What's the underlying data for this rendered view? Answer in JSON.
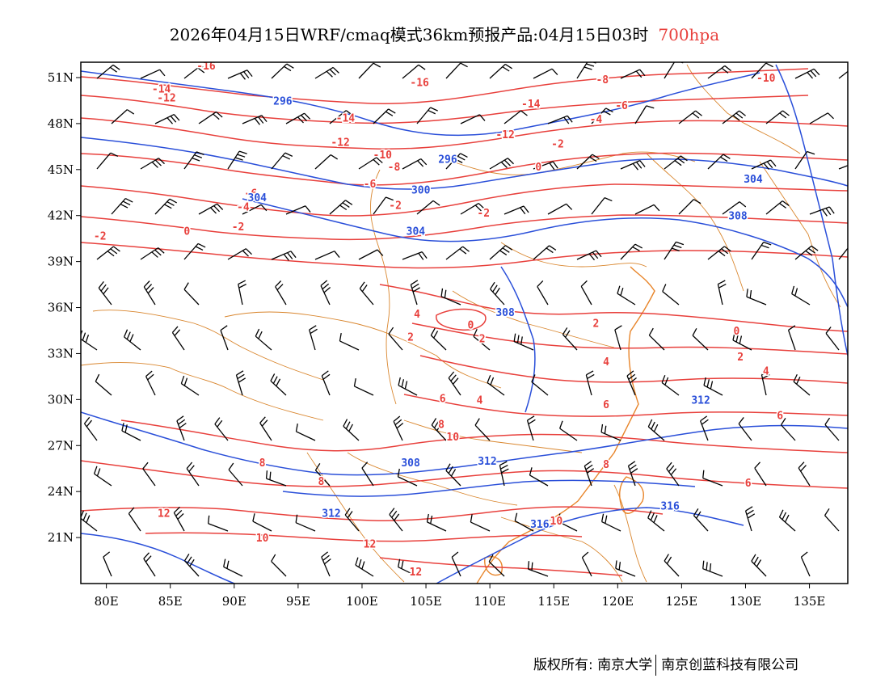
{
  "title": {
    "main": "2026年04月15日WRF/cmaq模式36km预报产品:04月15日03时",
    "level": "700hpa",
    "level_color": "#e8403c"
  },
  "map": {
    "lon_range": [
      78,
      138
    ],
    "lat_range": [
      18,
      52
    ],
    "lon_ticks": [
      "80E",
      "85E",
      "90E",
      "95E",
      "100E",
      "105E",
      "110E",
      "115E",
      "120E",
      "125E",
      "130E",
      "135E"
    ],
    "lat_ticks": [
      "51N",
      "48N",
      "45N",
      "42N",
      "39N",
      "36N",
      "33N",
      "30N",
      "27N",
      "24N",
      "21N"
    ],
    "colors": {
      "temperature": "#e8403c",
      "height": "#2a4fd9",
      "border": "#d9862e",
      "wind": "#000000"
    },
    "temperature_labels": [
      {
        "text": "-16",
        "lon": 87.8,
        "lat": 51.8
      },
      {
        "text": "-14",
        "lon": 84.3,
        "lat": 50.3
      },
      {
        "text": "-12",
        "lon": 84.7,
        "lat": 49.7
      },
      {
        "text": "-16",
        "lon": 104.5,
        "lat": 50.7
      },
      {
        "text": "-14",
        "lon": 98.7,
        "lat": 48.4
      },
      {
        "text": "-12",
        "lon": 98.3,
        "lat": 46.8
      },
      {
        "text": "-14",
        "lon": 113.2,
        "lat": 49.3
      },
      {
        "text": "-12",
        "lon": 111.2,
        "lat": 47.3
      },
      {
        "text": "-10",
        "lon": 101.6,
        "lat": 46.0
      },
      {
        "text": "-8",
        "lon": 102.5,
        "lat": 45.2
      },
      {
        "text": "-8",
        "lon": 118.8,
        "lat": 50.9
      },
      {
        "text": "-6",
        "lon": 120.3,
        "lat": 49.2
      },
      {
        "text": "-4",
        "lon": 118.3,
        "lat": 48.3
      },
      {
        "text": "-2",
        "lon": 115.3,
        "lat": 46.7
      },
      {
        "text": "0",
        "lon": 113.8,
        "lat": 45.2
      },
      {
        "text": "-10",
        "lon": 131.6,
        "lat": 51.0
      },
      {
        "text": "-6",
        "lon": 100.6,
        "lat": 44.1
      },
      {
        "text": "-2",
        "lon": 102.6,
        "lat": 42.7
      },
      {
        "text": "-6",
        "lon": 91.3,
        "lat": 43.5
      },
      {
        "text": "-4",
        "lon": 90.7,
        "lat": 42.6
      },
      {
        "text": "-2",
        "lon": 90.3,
        "lat": 41.3
      },
      {
        "text": "0",
        "lon": 86.3,
        "lat": 41.0
      },
      {
        "text": "-2",
        "lon": 79.5,
        "lat": 40.7
      },
      {
        "text": "-2",
        "lon": 109.5,
        "lat": 42.2
      },
      {
        "text": "4",
        "lon": 104.3,
        "lat": 35.6
      },
      {
        "text": "2",
        "lon": 103.8,
        "lat": 34.1
      },
      {
        "text": "0",
        "lon": 108.5,
        "lat": 34.9
      },
      {
        "text": "2",
        "lon": 109.4,
        "lat": 34.0
      },
      {
        "text": "2",
        "lon": 118.3,
        "lat": 35.0
      },
      {
        "text": "0",
        "lon": 129.3,
        "lat": 34.5
      },
      {
        "text": "2",
        "lon": 129.6,
        "lat": 32.8
      },
      {
        "text": "4",
        "lon": 119.1,
        "lat": 32.5
      },
      {
        "text": "4",
        "lon": 131.6,
        "lat": 31.9
      },
      {
        "text": "6",
        "lon": 106.3,
        "lat": 30.1
      },
      {
        "text": "4",
        "lon": 109.2,
        "lat": 30.0
      },
      {
        "text": "6",
        "lon": 119.1,
        "lat": 29.7
      },
      {
        "text": "6",
        "lon": 132.7,
        "lat": 29.0
      },
      {
        "text": "8",
        "lon": 106.2,
        "lat": 28.4
      },
      {
        "text": "10",
        "lon": 107.1,
        "lat": 27.6
      },
      {
        "text": "8",
        "lon": 92.2,
        "lat": 25.9
      },
      {
        "text": "8",
        "lon": 96.8,
        "lat": 24.7
      },
      {
        "text": "8",
        "lon": 119.1,
        "lat": 25.8
      },
      {
        "text": "6",
        "lon": 130.2,
        "lat": 24.6
      },
      {
        "text": "12",
        "lon": 84.5,
        "lat": 22.6
      },
      {
        "text": "10",
        "lon": 92.2,
        "lat": 21.0
      },
      {
        "text": "12",
        "lon": 100.6,
        "lat": 20.6
      },
      {
        "text": "10",
        "lon": 115.2,
        "lat": 22.1
      },
      {
        "text": "12",
        "lon": 104.2,
        "lat": 18.8
      }
    ],
    "height_labels": [
      {
        "text": "296",
        "lon": 93.8,
        "lat": 49.5
      },
      {
        "text": "296",
        "lon": 106.7,
        "lat": 45.7
      },
      {
        "text": "300",
        "lon": 104.6,
        "lat": 43.7
      },
      {
        "text": "304",
        "lon": 91.8,
        "lat": 43.2
      },
      {
        "text": "304",
        "lon": 104.2,
        "lat": 41.0
      },
      {
        "text": "304",
        "lon": 130.6,
        "lat": 44.4
      },
      {
        "text": "308",
        "lon": 129.4,
        "lat": 42.0
      },
      {
        "text": "308",
        "lon": 111.2,
        "lat": 35.7
      },
      {
        "text": "308",
        "lon": 103.8,
        "lat": 25.9
      },
      {
        "text": "312",
        "lon": 109.8,
        "lat": 26.0
      },
      {
        "text": "312",
        "lon": 126.5,
        "lat": 30.0
      },
      {
        "text": "312",
        "lon": 97.6,
        "lat": 22.6
      },
      {
        "text": "316",
        "lon": 113.9,
        "lat": 21.9
      },
      {
        "text": "316",
        "lon": 124.1,
        "lat": 23.1
      }
    ]
  },
  "footer": {
    "left": "版权所有: 南京大学",
    "right": "南京创蓝科技有限公司"
  }
}
